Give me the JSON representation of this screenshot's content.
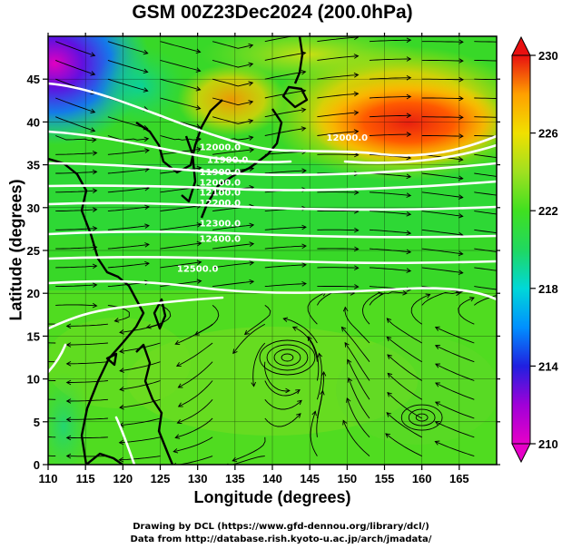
{
  "title": "GSM 00Z23Dec2024 (200.0hPa)",
  "xlabel": "Longitude (degrees)",
  "ylabel": "Latitude  (degrees)",
  "credits": [
    "Drawing by DCL (https://www.gfd-dennou.org/library/dcl/)",
    "Data from http://database.rish.kyoto-u.ac.jp/arch/jmadata/"
  ],
  "chart_data": {
    "type": "map",
    "field": "temperature and streamlines at 200.0hPa",
    "x_ticks": [
      110,
      115,
      120,
      125,
      130,
      135,
      140,
      145,
      150,
      155,
      160,
      165
    ],
    "y_ticks": [
      0,
      5,
      10,
      15,
      20,
      25,
      30,
      35,
      40,
      45
    ],
    "xlim": [
      110,
      170
    ],
    "ylim": [
      0,
      50
    ],
    "colorbar": {
      "ticks": [
        210,
        214,
        218,
        222,
        226,
        230
      ],
      "range": [
        210,
        230
      ],
      "colors": [
        "#e600c8",
        "#a000d8",
        "#2020e0",
        "#0090ff",
        "#00d8d8",
        "#20d860",
        "#40e020",
        "#a0e020",
        "#f0e000",
        "#ffa000",
        "#ff5000",
        "#e81010"
      ]
    },
    "contour_labels": [
      {
        "text": "12000.0",
        "lon": 150,
        "lat": 37.8
      },
      {
        "text": "12000.0",
        "lon": 133,
        "lat": 36.7
      },
      {
        "text": "11900.0",
        "lon": 134,
        "lat": 35.2
      },
      {
        "text": "11900.0",
        "lon": 133,
        "lat": 33.8
      },
      {
        "text": "12000.0",
        "lon": 133,
        "lat": 32.6
      },
      {
        "text": "12100.0",
        "lon": 133,
        "lat": 31.4
      },
      {
        "text": "12200.0",
        "lon": 133,
        "lat": 30.2
      },
      {
        "text": "12300.0",
        "lon": 133,
        "lat": 27.8
      },
      {
        "text": "12400.0",
        "lon": 133,
        "lat": 26.0
      },
      {
        "text": "12500.0",
        "lon": 130,
        "lat": 22.5
      }
    ]
  }
}
